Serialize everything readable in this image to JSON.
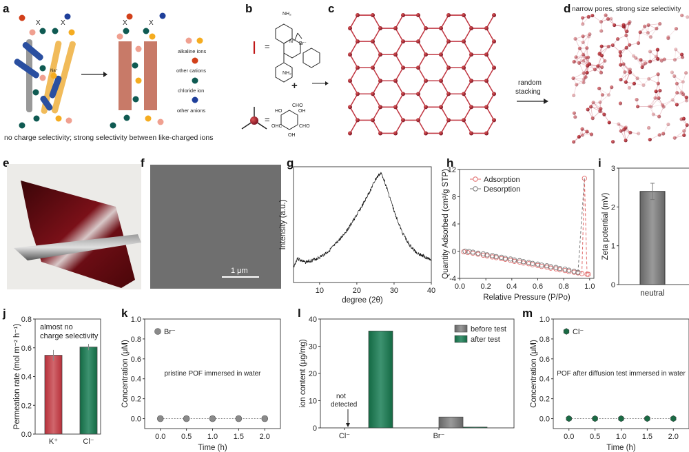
{
  "panels": {
    "a": {
      "label": "a",
      "caption": "no charge selectivity; strong selectivity between like-charged ions",
      "legend": [
        "alkaline ions",
        "other cations",
        "chloride ion",
        "other anions"
      ],
      "ion_label": "Na⁺",
      "blocked": "X"
    },
    "b": {
      "label": "b",
      "eq": "=",
      "plus": "+",
      "amine": "NH₂",
      "nplus": "N⁺",
      "br": "Br⁻",
      "cho": "CHO",
      "oh": "OH",
      "ho": "HO",
      "ohc": "OHC"
    },
    "c": {
      "label": "c",
      "arrow_text": [
        "random",
        "stacking"
      ]
    },
    "d": {
      "label": "d",
      "title": "narrow pores, strong size selectivity"
    },
    "e": {
      "label": "e"
    },
    "f": {
      "label": "f",
      "scale_bar": "1 μm"
    },
    "g": {
      "label": "g"
    },
    "h": {
      "label": "h"
    },
    "i": {
      "label": "i"
    },
    "j": {
      "label": "j"
    },
    "k": {
      "label": "k"
    },
    "l": {
      "label": "l"
    },
    "m": {
      "label": "m"
    }
  },
  "colors": {
    "red_bar": "#c0464e",
    "green_bar": "#1e7a52",
    "gray_bar": "#7a7a7a",
    "adsorption": "#e06a6a",
    "desorption": "#777777",
    "film": "#6b0d14",
    "sem": "#6f6f6f"
  },
  "chart_data": [
    {
      "id": "g",
      "type": "line",
      "title": "",
      "xlabel": "degree (2θ)",
      "ylabel": "Intensity (a.u.)",
      "xlim": [
        3,
        40
      ],
      "xticks": [
        "10",
        "20",
        "30",
        "40"
      ],
      "xtick_values": [
        10,
        20,
        30,
        40
      ],
      "x": [
        3,
        4,
        5,
        6,
        8,
        10,
        12,
        14,
        16,
        18,
        20,
        22,
        24,
        25,
        26,
        26.5,
        27,
        28,
        30,
        32,
        34,
        36,
        38,
        40
      ],
      "y": [
        0.05,
        0.14,
        0.12,
        0.1,
        0.12,
        0.15,
        0.2,
        0.27,
        0.36,
        0.46,
        0.58,
        0.71,
        0.86,
        0.94,
        0.99,
        1.0,
        0.97,
        0.86,
        0.62,
        0.42,
        0.28,
        0.2,
        0.16,
        0.13
      ]
    },
    {
      "id": "h",
      "type": "scatter",
      "xlabel": "Relative Pressure (P/Po)",
      "ylabel": "Quantity Adsorbed (cm³/g STP)",
      "xlim": [
        0,
        1.02
      ],
      "ylim": [
        -4,
        12
      ],
      "xticks": [
        "0.0",
        "0.2",
        "0.4",
        "0.6",
        "0.8",
        "1.0"
      ],
      "xtick_values": [
        0,
        0.2,
        0.4,
        0.6,
        0.8,
        1.0
      ],
      "yticks": [
        "-4",
        "0",
        "4",
        "8",
        "12"
      ],
      "ytick_values": [
        -4,
        0,
        4,
        8,
        12
      ],
      "series": [
        {
          "name": "Adsorption",
          "x": [
            0.03,
            0.06,
            0.1,
            0.14,
            0.18,
            0.21,
            0.25,
            0.28,
            0.32,
            0.35,
            0.39,
            0.42,
            0.46,
            0.49,
            0.53,
            0.56,
            0.6,
            0.63,
            0.67,
            0.7,
            0.74,
            0.77,
            0.81,
            0.84,
            0.88,
            0.91,
            0.94,
            0.96,
            0.98,
            0.99
          ],
          "y": [
            -0.1,
            -0.2,
            -0.3,
            -0.45,
            -0.6,
            -0.7,
            -0.85,
            -0.95,
            -1.1,
            -1.2,
            -1.35,
            -1.5,
            -1.6,
            -1.75,
            -1.85,
            -2.0,
            -2.1,
            -2.25,
            -2.35,
            -2.5,
            -2.6,
            -2.75,
            -2.85,
            -3.0,
            -3.1,
            -3.2,
            -3.3,
            10.7,
            -3.4,
            -3.4
          ]
        },
        {
          "name": "Desorption",
          "x": [
            0.04,
            0.07,
            0.1,
            0.14,
            0.18,
            0.21,
            0.25,
            0.28,
            0.32,
            0.35,
            0.39,
            0.42,
            0.46,
            0.49,
            0.53,
            0.56,
            0.6,
            0.63,
            0.67,
            0.7,
            0.74,
            0.77,
            0.81,
            0.84,
            0.88,
            0.91
          ],
          "y": [
            0.0,
            -0.05,
            -0.15,
            -0.3,
            -0.4,
            -0.55,
            -0.65,
            -0.8,
            -0.9,
            -1.05,
            -1.15,
            -1.3,
            -1.4,
            -1.55,
            -1.65,
            -1.8,
            -1.9,
            -2.05,
            -2.15,
            -2.3,
            -2.4,
            -2.55,
            -2.65,
            -2.8,
            -2.95,
            -3.1
          ]
        }
      ]
    },
    {
      "id": "i",
      "type": "bar",
      "ylabel": "Zeta potential (mV)",
      "ylim": [
        0,
        3
      ],
      "yticks": [
        "0",
        "1",
        "2",
        "3"
      ],
      "ytick_values": [
        0,
        1,
        2,
        3
      ],
      "categories": [
        "neutral"
      ],
      "values": [
        2.4
      ],
      "errors": [
        0.21
      ]
    },
    {
      "id": "j",
      "type": "bar",
      "ylabel": "Permeation rate (mol m⁻² h⁻¹)",
      "ylim": [
        0,
        0.8
      ],
      "yticks": [
        "0.0",
        "0.2",
        "0.4",
        "0.6",
        "0.8"
      ],
      "ytick_values": [
        0,
        0.2,
        0.4,
        0.6,
        0.8
      ],
      "categories": [
        "K⁺",
        "Cl⁻"
      ],
      "values": [
        0.548,
        0.605
      ],
      "errors": [
        0.037,
        0.022
      ],
      "annotation": [
        "almost no",
        "charge selectivity"
      ]
    },
    {
      "id": "k",
      "type": "scatter",
      "xlabel": "Time (h)",
      "ylabel": "Concentration (μM)",
      "xlim": [
        -0.3,
        2.3
      ],
      "ylim": [
        -0.1,
        1.0
      ],
      "xticks": [
        "0.0",
        "0.5",
        "1.0",
        "1.5",
        "2.0"
      ],
      "xtick_values": [
        0,
        0.5,
        1,
        1.5,
        2
      ],
      "yticks": [
        "0.0",
        "0.2",
        "0.4",
        "0.6",
        "0.8",
        "1.0"
      ],
      "ytick_values": [
        0,
        0.2,
        0.4,
        0.6,
        0.8,
        1.0
      ],
      "series": [
        {
          "name": "Br⁻",
          "x": [
            0,
            0.5,
            1,
            1.5,
            2
          ],
          "y": [
            0,
            0,
            0,
            0,
            0
          ]
        }
      ],
      "annotation": "pristine POF immersed in water"
    },
    {
      "id": "l",
      "type": "bar",
      "ylabel": "ion content (μg/mg)",
      "ylim": [
        0,
        40
      ],
      "yticks": [
        "0",
        "10",
        "20",
        "30",
        "40"
      ],
      "ytick_values": [
        0,
        10,
        20,
        30,
        40
      ],
      "categories": [
        "Cl⁻",
        "Br⁻"
      ],
      "series": [
        {
          "name": "before test",
          "values": [
            0,
            4.0
          ]
        },
        {
          "name": "after test",
          "values": [
            35.6,
            0.3
          ]
        }
      ],
      "annotation": [
        "not",
        "detected"
      ]
    },
    {
      "id": "m",
      "type": "scatter",
      "xlabel": "Time (h)",
      "ylabel": "Concentration (μM)",
      "xlim": [
        -0.3,
        2.3
      ],
      "ylim": [
        -0.1,
        1.0
      ],
      "xticks": [
        "0.0",
        "0.5",
        "1.0",
        "1.5",
        "2.0"
      ],
      "xtick_values": [
        0,
        0.5,
        1,
        1.5,
        2
      ],
      "yticks": [
        "0.0",
        "0.2",
        "0.4",
        "0.6",
        "0.8",
        "1.0"
      ],
      "ytick_values": [
        0,
        0.2,
        0.4,
        0.6,
        0.8,
        1.0
      ],
      "series": [
        {
          "name": "Cl⁻",
          "x": [
            0,
            0.5,
            1,
            1.5,
            2
          ],
          "y": [
            0,
            0,
            0,
            0,
            0
          ]
        }
      ],
      "annotation": "POF after diffusion test immersed in water"
    }
  ]
}
